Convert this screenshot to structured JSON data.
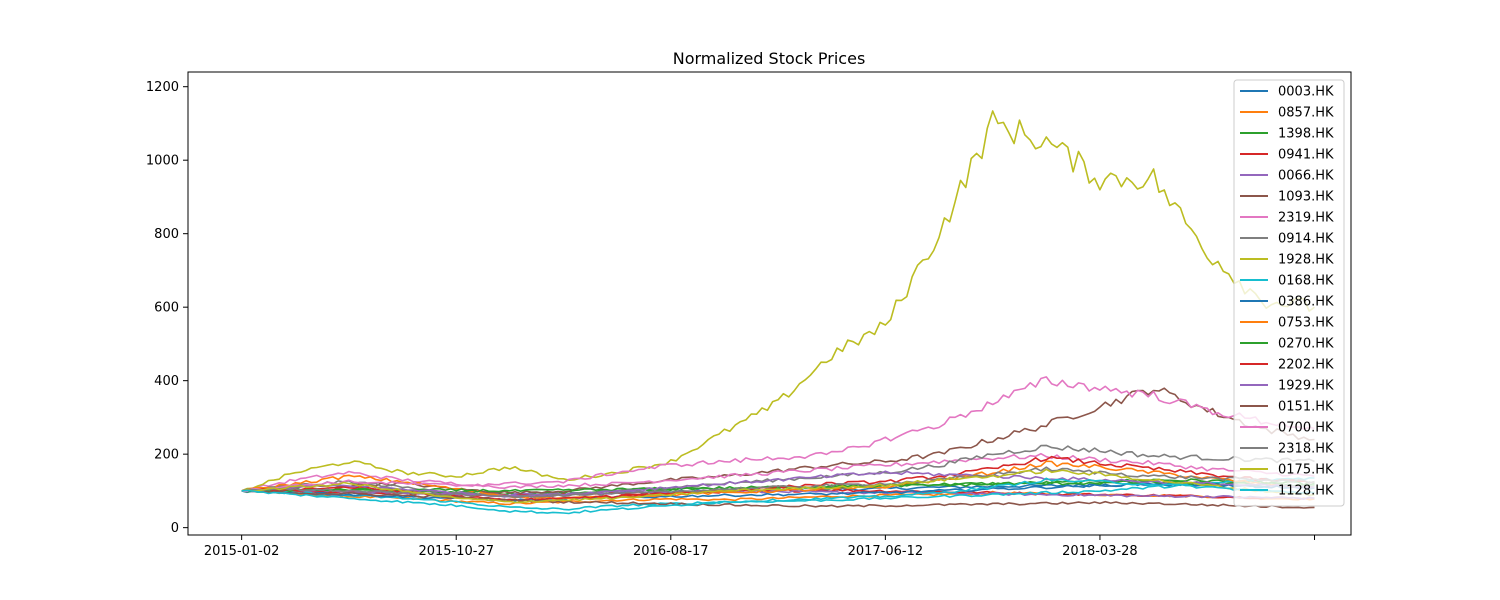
{
  "chart_data": {
    "type": "line",
    "title": "Normalized Stock Prices",
    "xlabel": "",
    "ylabel": "",
    "ylim": [
      -20,
      1240
    ],
    "y_ticks": [
      0,
      200,
      400,
      600,
      800,
      1000,
      1200
    ],
    "x_tick_labels": [
      "2015-01-02",
      "2015-10-27",
      "2016-08-17",
      "2017-06-12",
      "2018-03-28",
      ""
    ],
    "x_tick_positions": [
      0,
      1,
      2,
      3,
      4,
      5
    ],
    "x_range": [
      -0.25,
      5.17
    ],
    "x": [
      0,
      0.25,
      0.5,
      0.75,
      1,
      1.25,
      1.5,
      1.75,
      2,
      2.25,
      2.5,
      2.75,
      3,
      3.25,
      3.5,
      3.75,
      4,
      4.25,
      4.5,
      4.75,
      5
    ],
    "legend_location": "top-right",
    "series": [
      {
        "name": "0003.HK",
        "color": "#1f77b4",
        "values": [
          100,
          98,
          96,
          95,
          93,
          90,
          92,
          95,
          98,
          100,
          102,
          104,
          106,
          110,
          112,
          114,
          116,
          118,
          115,
          112,
          110
        ]
      },
      {
        "name": "0857.HK",
        "color": "#ff7f0e",
        "values": [
          100,
          92,
          85,
          80,
          72,
          65,
          70,
          75,
          78,
          76,
          80,
          85,
          88,
          90,
          95,
          92,
          90,
          88,
          85,
          80,
          78
        ]
      },
      {
        "name": "1398.HK",
        "color": "#2ca02c",
        "values": [
          100,
          105,
          102,
          98,
          95,
          92,
          95,
          100,
          105,
          108,
          110,
          112,
          115,
          118,
          120,
          122,
          125,
          130,
          128,
          122,
          120
        ]
      },
      {
        "name": "0941.HK",
        "color": "#d62728",
        "values": [
          100,
          98,
          96,
          92,
          90,
          88,
          90,
          92,
          95,
          98,
          100,
          102,
          100,
          98,
          95,
          92,
          90,
          88,
          85,
          82,
          80
        ]
      },
      {
        "name": "0066.HK",
        "color": "#9467bd",
        "values": [
          100,
          102,
          98,
          95,
          92,
          90,
          92,
          95,
          98,
          100,
          98,
          96,
          95,
          94,
          92,
          90,
          88,
          86,
          85,
          82,
          80
        ]
      },
      {
        "name": "1093.HK",
        "color": "#8c564b",
        "values": [
          100,
          110,
          115,
          120,
          105,
          95,
          100,
          115,
          130,
          140,
          155,
          170,
          180,
          200,
          240,
          280,
          330,
          380,
          320,
          270,
          240
        ]
      },
      {
        "name": "2319.HK",
        "color": "#e377c2",
        "values": [
          100,
          130,
          150,
          130,
          120,
          110,
          115,
          120,
          130,
          140,
          150,
          160,
          170,
          180,
          190,
          195,
          185,
          175,
          160,
          150,
          140
        ]
      },
      {
        "name": "0914.HK",
        "color": "#7f7f7f",
        "values": [
          100,
          115,
          125,
          110,
          95,
          85,
          90,
          100,
          110,
          120,
          130,
          140,
          150,
          170,
          200,
          220,
          210,
          195,
          190,
          185,
          180
        ]
      },
      {
        "name": "1928.HK",
        "color": "#bcbd22",
        "values": [
          100,
          150,
          180,
          150,
          140,
          165,
          130,
          150,
          180,
          260,
          340,
          470,
          550,
          800,
          1100,
          1050,
          950,
          950,
          750,
          620,
          600
        ]
      },
      {
        "name": "0168.HK",
        "color": "#17becf",
        "values": [
          100,
          95,
          88,
          80,
          70,
          55,
          50,
          60,
          65,
          70,
          72,
          75,
          80,
          85,
          90,
          95,
          100,
          110,
          120,
          130,
          135
        ]
      },
      {
        "name": "0386.HK",
        "color": "#1f77b4",
        "values": [
          100,
          95,
          90,
          85,
          80,
          75,
          78,
          82,
          85,
          88,
          90,
          92,
          95,
          100,
          105,
          110,
          115,
          120,
          118,
          112,
          108
        ]
      },
      {
        "name": "0753.HK",
        "color": "#ff7f0e",
        "values": [
          100,
          120,
          140,
          125,
          105,
          85,
          80,
          85,
          90,
          95,
          100,
          105,
          110,
          130,
          150,
          175,
          165,
          150,
          135,
          120,
          110
        ]
      },
      {
        "name": "0270.HK",
        "color": "#2ca02c",
        "values": [
          100,
          102,
          104,
          103,
          102,
          100,
          102,
          104,
          106,
          108,
          110,
          112,
          114,
          116,
          118,
          120,
          122,
          124,
          120,
          118,
          116
        ]
      },
      {
        "name": "2202.HK",
        "color": "#d62728",
        "values": [
          100,
          105,
          110,
          100,
          85,
          75,
          80,
          85,
          95,
          100,
          110,
          120,
          125,
          140,
          160,
          190,
          175,
          160,
          145,
          130,
          125
        ]
      },
      {
        "name": "1929.HK",
        "color": "#9467bd",
        "values": [
          100,
          110,
          115,
          105,
          95,
          85,
          90,
          100,
          110,
          120,
          130,
          140,
          150,
          145,
          140,
          135,
          130,
          125,
          120,
          115,
          110
        ]
      },
      {
        "name": "0151.HK",
        "color": "#8c564b",
        "values": [
          100,
          95,
          92,
          88,
          82,
          75,
          70,
          68,
          65,
          62,
          60,
          58,
          60,
          62,
          64,
          66,
          68,
          66,
          62,
          58,
          55
        ]
      },
      {
        "name": "0700.HK",
        "color": "#e377c2",
        "values": [
          100,
          115,
          125,
          120,
          115,
          120,
          125,
          150,
          170,
          180,
          190,
          200,
          240,
          280,
          340,
          400,
          380,
          360,
          320,
          290,
          270
        ]
      },
      {
        "name": "2318.HK",
        "color": "#7f7f7f",
        "values": [
          100,
          105,
          100,
          95,
          90,
          85,
          88,
          92,
          98,
          105,
          110,
          115,
          120,
          130,
          145,
          160,
          150,
          140,
          135,
          130,
          125
        ]
      },
      {
        "name": "0175.HK",
        "color": "#bcbd22",
        "values": [
          100,
          110,
          120,
          100,
          80,
          70,
          75,
          80,
          90,
          100,
          105,
          110,
          115,
          130,
          140,
          155,
          145,
          130,
          115,
          100,
          90
        ]
      },
      {
        "name": "1128.HK",
        "color": "#17becf",
        "values": [
          100,
          90,
          80,
          70,
          60,
          45,
          40,
          50,
          60,
          70,
          75,
          80,
          85,
          95,
          110,
          130,
          125,
          118,
          110,
          100,
          95
        ]
      }
    ]
  }
}
